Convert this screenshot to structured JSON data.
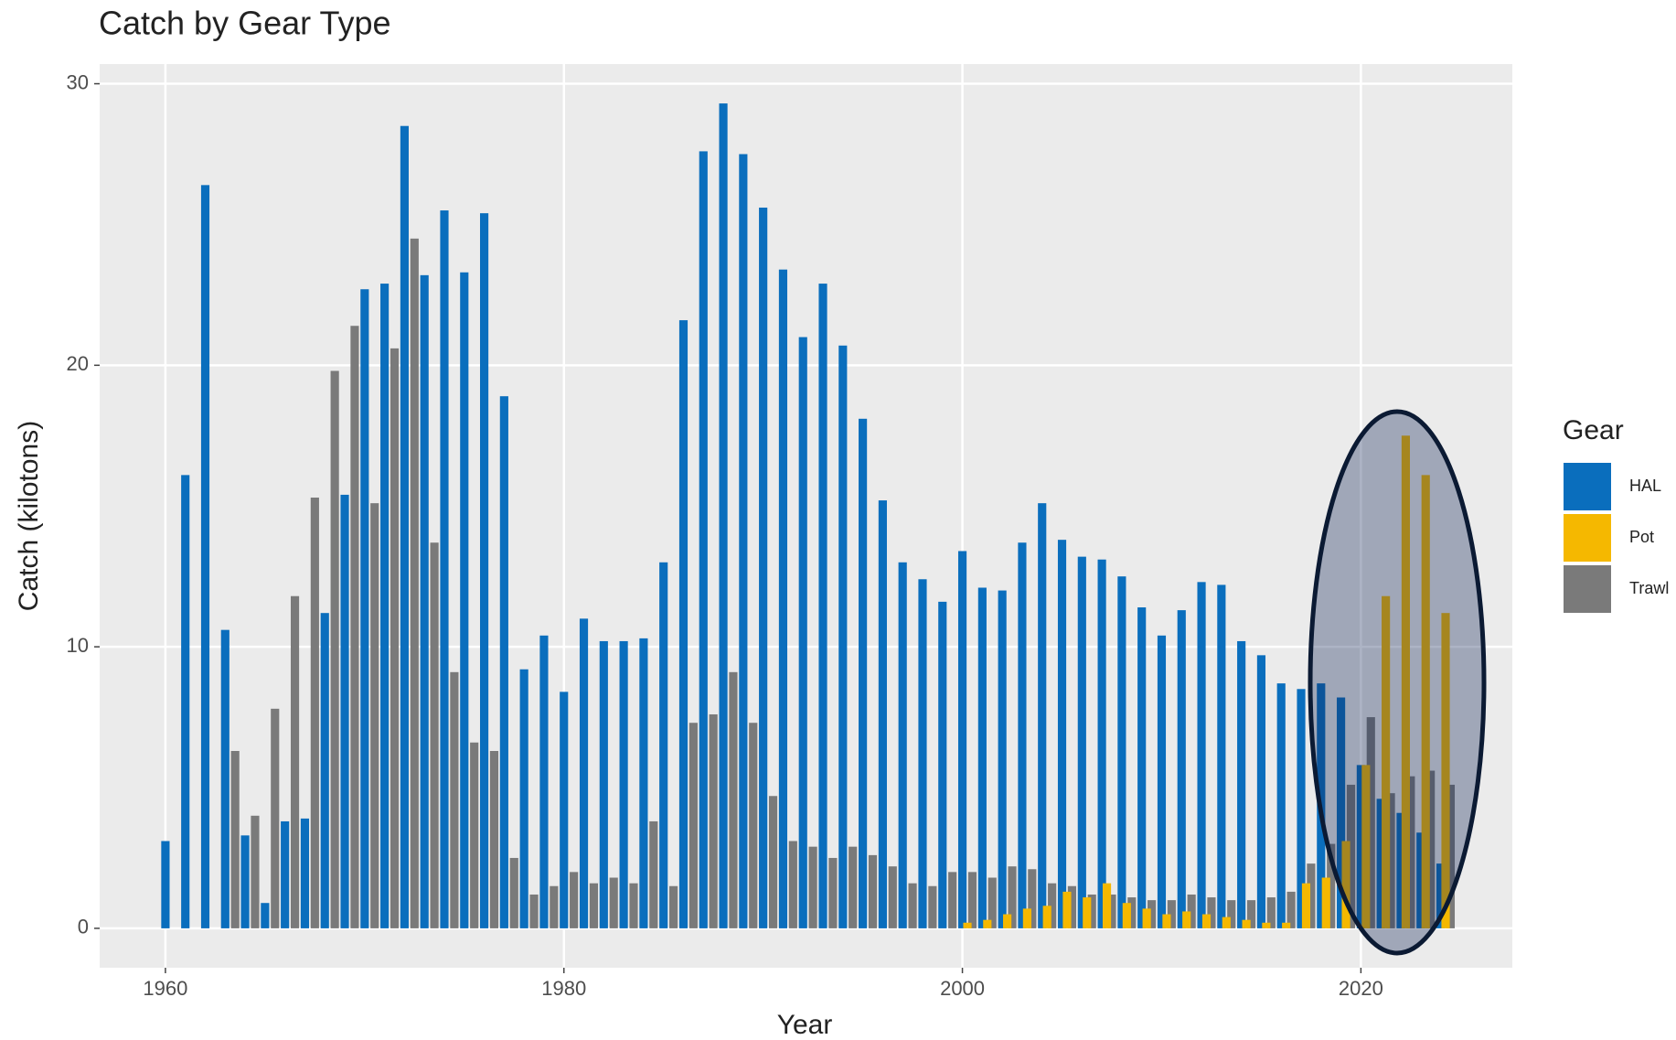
{
  "chart_data": {
    "type": "bar",
    "title": "Catch by Gear Type",
    "x_label": "Year",
    "y_label": "Catch (kilotons)",
    "x": [
      1960,
      1961,
      1962,
      1963,
      1964,
      1965,
      1966,
      1967,
      1968,
      1969,
      1970,
      1971,
      1972,
      1973,
      1974,
      1975,
      1976,
      1977,
      1978,
      1979,
      1980,
      1981,
      1982,
      1983,
      1984,
      1985,
      1986,
      1987,
      1988,
      1989,
      1990,
      1991,
      1992,
      1993,
      1994,
      1995,
      1996,
      1997,
      1998,
      1999,
      2000,
      2001,
      2002,
      2003,
      2004,
      2005,
      2006,
      2007,
      2008,
      2009,
      2010,
      2011,
      2012,
      2013,
      2014,
      2015,
      2016,
      2017,
      2018,
      2019,
      2020,
      2021,
      2022,
      2023,
      2024
    ],
    "series": [
      {
        "name": "HAL",
        "color": "#0a6ebd",
        "values": [
          3.1,
          16.1,
          26.4,
          10.6,
          3.3,
          0.9,
          3.8,
          3.9,
          11.2,
          15.4,
          22.7,
          22.9,
          28.5,
          23.2,
          25.5,
          23.3,
          25.4,
          18.9,
          9.2,
          10.4,
          8.4,
          11.0,
          10.2,
          10.2,
          10.3,
          13.0,
          21.6,
          27.6,
          29.3,
          27.5,
          25.6,
          23.4,
          21.0,
          22.9,
          20.7,
          18.1,
          15.2,
          13.0,
          12.4,
          11.6,
          13.4,
          12.1,
          12.0,
          13.7,
          15.1,
          13.8,
          13.2,
          13.1,
          12.5,
          11.4,
          10.4,
          11.3,
          12.3,
          12.2,
          10.2,
          9.7,
          8.7,
          8.5,
          8.7,
          8.2,
          5.8,
          4.6,
          4.1,
          3.4,
          2.3
        ]
      },
      {
        "name": "Pot",
        "color": "#f5b800",
        "values": [
          null,
          null,
          null,
          null,
          null,
          null,
          null,
          null,
          null,
          null,
          null,
          null,
          null,
          null,
          null,
          null,
          null,
          null,
          null,
          null,
          null,
          null,
          null,
          null,
          null,
          null,
          null,
          null,
          null,
          null,
          null,
          null,
          null,
          null,
          null,
          null,
          null,
          null,
          null,
          null,
          0.2,
          0.3,
          0.5,
          0.7,
          0.8,
          1.3,
          1.1,
          1.6,
          0.9,
          0.7,
          0.5,
          0.6,
          0.5,
          0.4,
          0.3,
          0.2,
          0.2,
          1.6,
          1.8,
          3.1,
          5.8,
          11.8,
          17.5,
          16.1,
          11.2
        ]
      },
      {
        "name": "Trawl",
        "color": "#7a7a7a",
        "values": [
          null,
          null,
          null,
          6.3,
          4.0,
          7.8,
          11.8,
          15.3,
          19.8,
          21.4,
          15.1,
          20.6,
          24.5,
          13.7,
          9.1,
          6.6,
          6.3,
          2.5,
          1.2,
          1.5,
          2.0,
          1.6,
          1.8,
          1.6,
          3.8,
          1.5,
          7.3,
          7.6,
          9.1,
          7.3,
          4.7,
          3.1,
          2.9,
          2.5,
          2.9,
          2.6,
          2.2,
          1.6,
          1.5,
          2.0,
          2.0,
          1.8,
          2.2,
          2.1,
          1.6,
          1.5,
          1.2,
          1.2,
          1.1,
          1.0,
          1.0,
          1.2,
          1.1,
          1.0,
          1.0,
          1.1,
          1.3,
          2.3,
          3.0,
          5.1,
          7.5,
          4.8,
          5.4,
          5.6,
          5.1
        ]
      }
    ],
    "legend_title": "Gear",
    "xlim": [
      1956.7,
      2027.6
    ],
    "xticks": [
      1960,
      1980,
      2000,
      2020
    ],
    "ylim": [
      -1.4,
      30.7
    ],
    "yticks": [
      0,
      10,
      20,
      30
    ],
    "grid": true
  }
}
